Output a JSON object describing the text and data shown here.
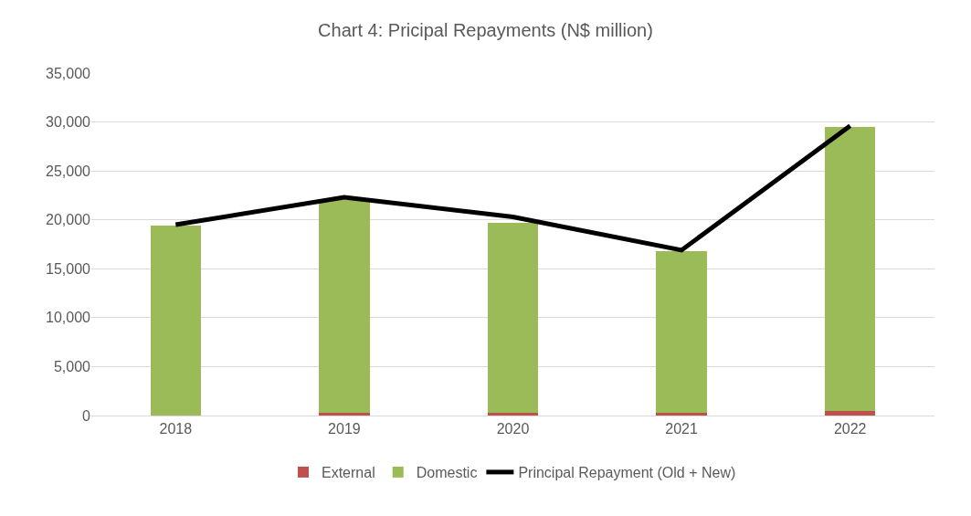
{
  "chart_data": {
    "type": "bar",
    "title": "Chart 4: Pricipal Repayments (N$ million)",
    "categories": [
      "2018",
      "2019",
      "2020",
      "2021",
      "2022"
    ],
    "stacked": true,
    "series": [
      {
        "name": "External",
        "color": "#c0504d",
        "values": [
          null,
          300,
          300,
          300,
          500
        ]
      },
      {
        "name": "Domestic",
        "color": "#9bbb59",
        "values": [
          19400,
          21700,
          19400,
          16500,
          29000
        ]
      },
      {
        "name": "Principal Repayment (Old + New)",
        "type": "line",
        "color": "#000000",
        "values": [
          19500,
          22300,
          20300,
          16900,
          29600
        ]
      }
    ],
    "ylim": [
      0,
      35000
    ],
    "yticks": [
      {
        "value": 0,
        "label": "0"
      },
      {
        "value": 5000,
        "label": "5,000"
      },
      {
        "value": 10000,
        "label": "10,000"
      },
      {
        "value": 15000,
        "label": "15,000"
      },
      {
        "value": 20000,
        "label": "20,000"
      },
      {
        "value": 25000,
        "label": "25,000"
      },
      {
        "value": 30000,
        "label": "30,000"
      },
      {
        "value": 35000,
        "label": "35,000"
      }
    ],
    "grid": "y",
    "legend": "bottom",
    "marker": "none",
    "line_style": "solid"
  }
}
